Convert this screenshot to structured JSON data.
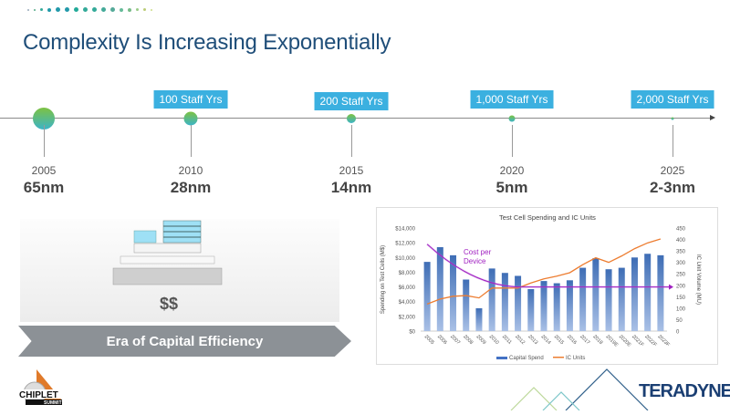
{
  "slide": {
    "title": "Complexity Is Increasing Exponentially",
    "timeline": [
      {
        "year": "2005",
        "node": "65nm",
        "staff": ""
      },
      {
        "year": "2010",
        "node": "28nm",
        "staff": "100 Staff Yrs"
      },
      {
        "year": "2015",
        "node": "14nm",
        "staff": "200 Staff Yrs"
      },
      {
        "year": "2020",
        "node": "5nm",
        "staff": "1,000 Staff Yrs"
      },
      {
        "year": "2025",
        "node": "2-3nm",
        "staff": "2,000 Staff Yrs"
      }
    ],
    "cost_label": "$$",
    "era_label": "Era of Capital Efficiency",
    "logos": {
      "left": "CHIPLET SUMMIT",
      "right": "TERADYNE"
    },
    "colors": {
      "title": "#1f4e79",
      "badge": "#3bb0e0",
      "bar": "#4472c4",
      "line": "#ed7d31",
      "cost_curve": "#a020c0"
    }
  },
  "chart_data": {
    "type": "bar",
    "title": "Test Cell Spending and IC Units",
    "categories": [
      "2005",
      "2006",
      "2007",
      "2008",
      "2009",
      "2010",
      "2011",
      "2012",
      "2013",
      "2014",
      "2015",
      "2016",
      "2017",
      "2018",
      "2019E",
      "2020E",
      "2021F",
      "2022F",
      "2023F"
    ],
    "series": [
      {
        "name": "Capital Spend",
        "type": "bar",
        "axis": "left",
        "values": [
          9400,
          11400,
          10300,
          7000,
          3100,
          8500,
          7900,
          7500,
          5700,
          6800,
          6500,
          6900,
          8600,
          9900,
          8400,
          8600,
          10000,
          10500,
          10300
        ]
      },
      {
        "name": "IC Units",
        "type": "line",
        "axis": "right",
        "values": [
          118,
          140,
          152,
          155,
          145,
          188,
          188,
          188,
          210,
          228,
          240,
          255,
          290,
          320,
          300,
          328,
          360,
          385,
          402
        ]
      }
    ],
    "ylabel": "Spending on Test Cells (M$)",
    "ylabel_right": "IC Unit Volume (MU)",
    "ylim": [
      0,
      14000
    ],
    "ylim_right": [
      0,
      450
    ],
    "yticks": [
      "$0",
      "$2,000",
      "$4,000",
      "$6,000",
      "$8,000",
      "$10,000",
      "$12,000",
      "$14,000"
    ],
    "yticks_right": [
      "0",
      "50",
      "100",
      "150",
      "200",
      "250",
      "300",
      "350",
      "400",
      "450"
    ],
    "annotation": "Cost per Device",
    "grid": false,
    "legend": "bottom"
  }
}
